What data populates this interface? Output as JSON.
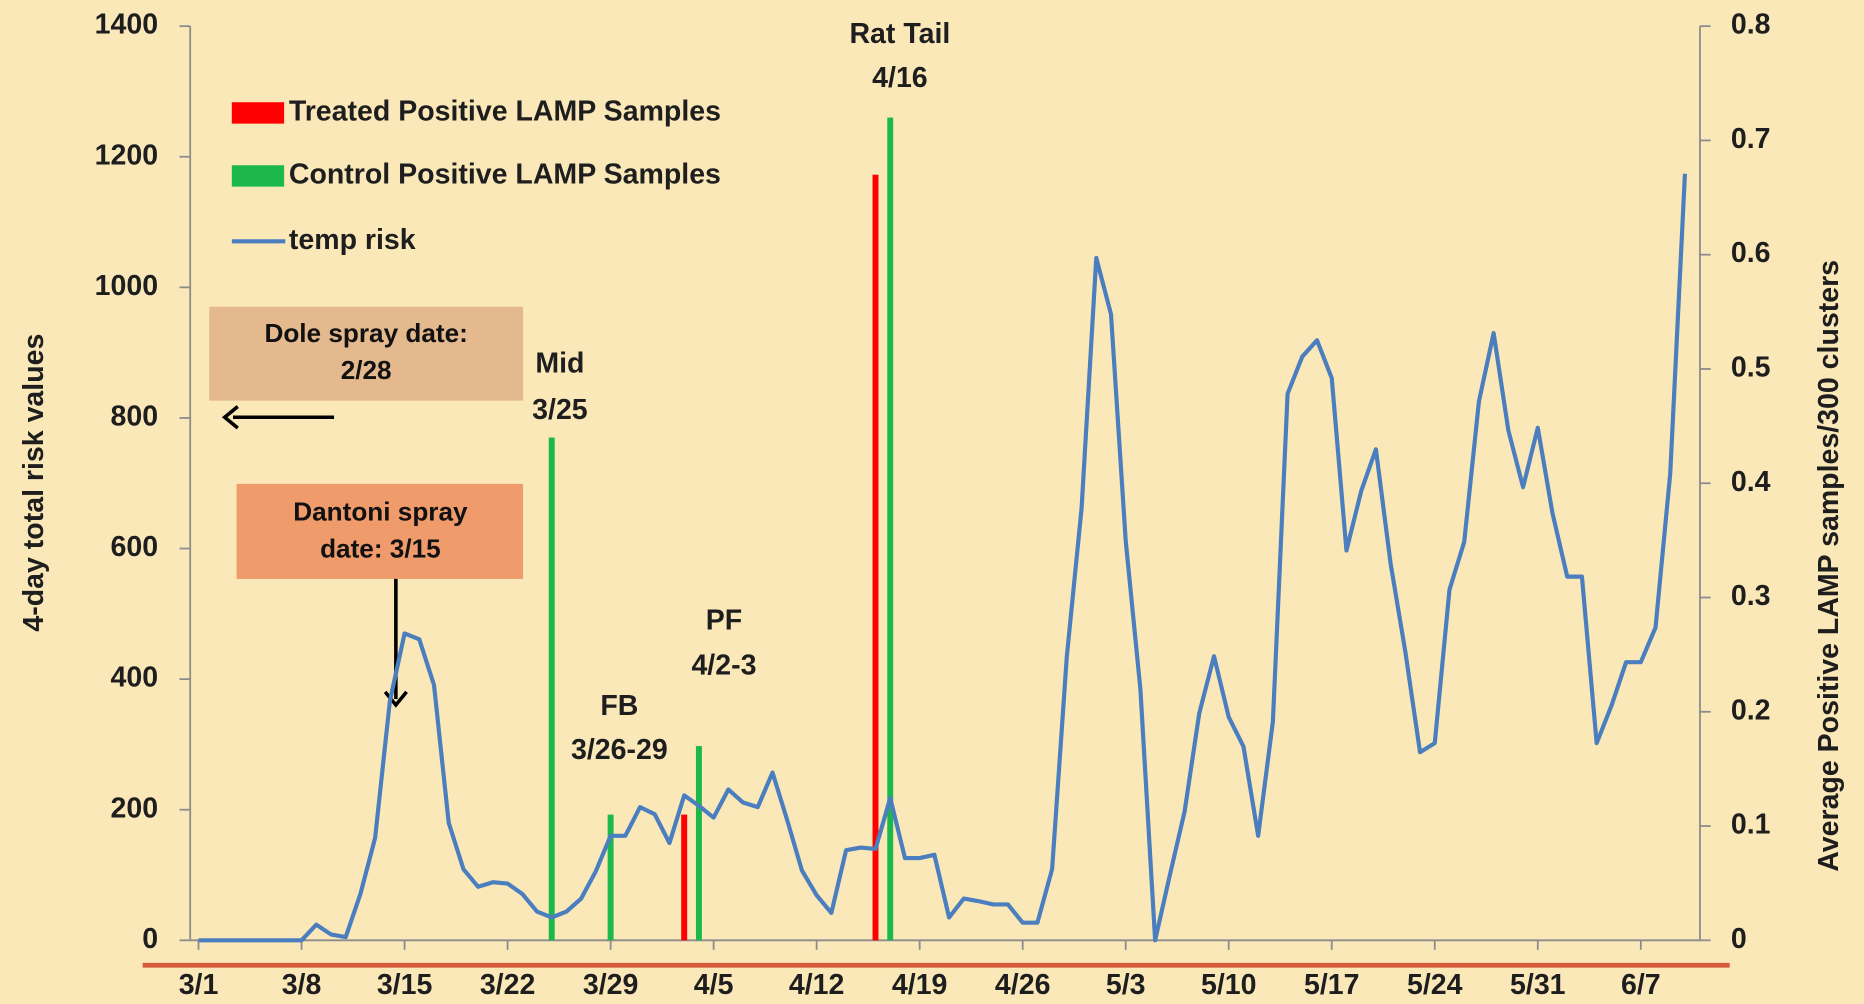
{
  "chart_data": {
    "type": "bar",
    "categories": [
      "3/1",
      null,
      null,
      null,
      null,
      null,
      null,
      "3/8",
      null,
      null,
      null,
      null,
      null,
      null,
      "3/15",
      null,
      null,
      null,
      null,
      null,
      null,
      "3/22",
      null,
      null,
      null,
      null,
      null,
      null,
      "3/29",
      null,
      null,
      null,
      null,
      null,
      null,
      "4/5",
      null,
      null,
      null,
      null,
      null,
      null,
      "4/12",
      null,
      null,
      null,
      null,
      null,
      null,
      "4/19",
      null,
      null,
      null,
      null,
      null,
      null,
      "4/26",
      null,
      null,
      null,
      null,
      null,
      null,
      "5/3",
      null,
      null,
      null,
      null,
      null,
      null,
      "5/10",
      null,
      null,
      null,
      null,
      null,
      null,
      "5/17",
      null,
      null,
      null,
      null,
      null,
      null,
      "5/24",
      null,
      null,
      null,
      null,
      null,
      null,
      "5/31",
      null,
      null,
      null,
      null,
      null,
      null,
      "6/7",
      null,
      null,
      null
    ],
    "series": [
      {
        "name": "Treated Positive LAMP Samples",
        "color": "#ff0000",
        "axis": "y2",
        "values": [
          null,
          null,
          null,
          null,
          null,
          null,
          null,
          null,
          null,
          null,
          null,
          null,
          null,
          null,
          null,
          null,
          null,
          null,
          null,
          null,
          null,
          null,
          null,
          null,
          null,
          null,
          null,
          null,
          null,
          null,
          null,
          null,
          null,
          0.11,
          null,
          null,
          null,
          null,
          null,
          null,
          null,
          null,
          null,
          null,
          null,
          null,
          0.67,
          null,
          null,
          null,
          null,
          null,
          null,
          null,
          null,
          null,
          null,
          null,
          null,
          null,
          null,
          null,
          null,
          null,
          null,
          null,
          null,
          null,
          null,
          null,
          null,
          null,
          null,
          null,
          null,
          null,
          null,
          null,
          null,
          null,
          null,
          null,
          null,
          null,
          null,
          null,
          null,
          null,
          null,
          null,
          null,
          null,
          null,
          null,
          null,
          null,
          null,
          null,
          null,
          null,
          null,
          null
        ]
      },
      {
        "name": "Control Positive LAMP Samples",
        "color": "#1db84b",
        "axis": "y2",
        "values": [
          null,
          null,
          null,
          null,
          null,
          null,
          null,
          null,
          null,
          null,
          null,
          null,
          null,
          null,
          null,
          null,
          null,
          null,
          null,
          null,
          null,
          null,
          null,
          null,
          0.44,
          null,
          null,
          null,
          0.11,
          null,
          null,
          null,
          null,
          null,
          0.17,
          null,
          null,
          null,
          null,
          null,
          null,
          null,
          null,
          null,
          null,
          null,
          null,
          0.72,
          null,
          null,
          null,
          null,
          null,
          null,
          null,
          null,
          null,
          null,
          null,
          null,
          null,
          null,
          null,
          null,
          null,
          null,
          null,
          null,
          null,
          null,
          null,
          null,
          null,
          null,
          null,
          null,
          null,
          null,
          null,
          null,
          null,
          null,
          null,
          null,
          null,
          null,
          null,
          null,
          null,
          null,
          null,
          null,
          null,
          null,
          null,
          null,
          null,
          null,
          null,
          null,
          null,
          null
        ]
      },
      {
        "name": "temp risk",
        "color": "#4a7ebf",
        "type": "line",
        "values": [
          0,
          0,
          0,
          0,
          0,
          0,
          0,
          0,
          24,
          9,
          5,
          71,
          157,
          366,
          470,
          461,
          391,
          180,
          109,
          82,
          89,
          87,
          71,
          44,
          35,
          44,
          64,
          106,
          160,
          160,
          204,
          193,
          149,
          222,
          206,
          188,
          231,
          211,
          204,
          257,
          184,
          107,
          69,
          42,
          138,
          142,
          140,
          218,
          126,
          126,
          131,
          35,
          64,
          60,
          55,
          55,
          27,
          27,
          109,
          435,
          661,
          1045,
          959,
          612,
          384,
          0,
          100,
          197,
          348,
          435,
          342,
          297,
          160,
          335,
          837,
          894,
          919,
          861,
          597,
          688,
          752,
          577,
          442,
          288,
          302,
          537,
          610,
          825,
          930,
          781,
          694,
          785,
          654,
          557,
          557,
          302,
          359,
          426,
          426,
          479,
          715,
          1174
        ]
      }
    ],
    "ylabel": "4-day total risk values",
    "y2label": "Average Positive LAMP samples/300 clusters",
    "ylim": [
      0,
      1400
    ],
    "yticks": [
      0,
      200,
      400,
      600,
      800,
      1000,
      1200,
      1400
    ],
    "y2lim": [
      0,
      0.8
    ],
    "y2ticks": [
      0,
      0.1,
      0.2,
      0.3,
      0.4,
      0.5,
      0.6,
      0.7,
      0.8
    ],
    "legend": "upper left",
    "annotations": [
      {
        "lines": [
          "Rat Tail",
          "4/16"
        ]
      },
      {
        "lines": [
          "Mid",
          "3/25"
        ]
      },
      {
        "lines": [
          "FB",
          "3/26-29"
        ]
      },
      {
        "lines": [
          "PF",
          "4/2-3"
        ]
      },
      {
        "lines": [
          "Dole spray date:",
          "2/28"
        ]
      },
      {
        "lines": [
          "Dantoni spray",
          "date:  3/15"
        ]
      }
    ]
  }
}
